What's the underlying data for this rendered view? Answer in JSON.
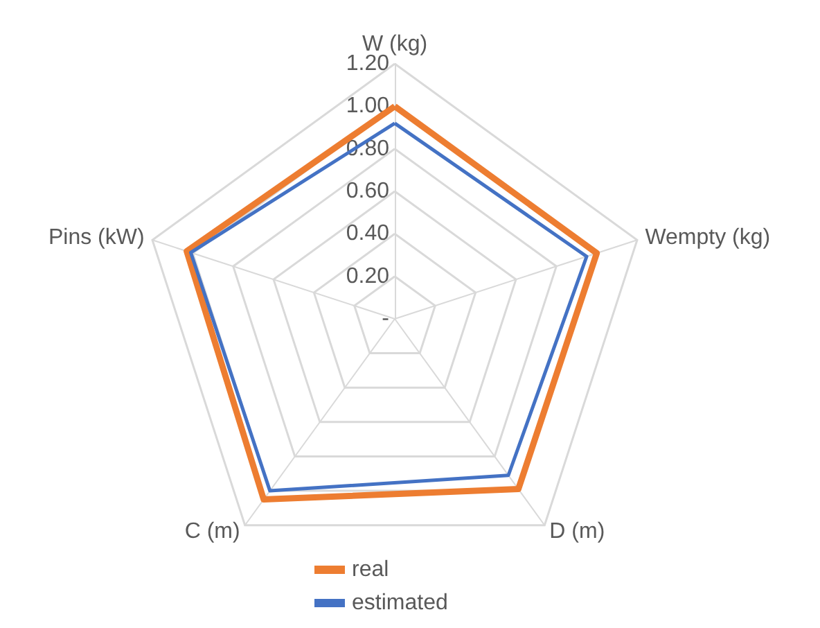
{
  "chart_data": {
    "type": "radar",
    "categories": [
      "W (kg)",
      "Wempty (kg)",
      "D (m)",
      "C (m)",
      "Pins (kW)"
    ],
    "ylim": [
      0,
      1.2
    ],
    "yticks": [
      {
        "value": 0,
        "label": "-"
      },
      {
        "value": 0.2,
        "label": "0.20"
      },
      {
        "value": 0.4,
        "label": "0.40"
      },
      {
        "value": 0.6,
        "label": "0.60"
      },
      {
        "value": 0.8,
        "label": "0.80"
      },
      {
        "value": 1.0,
        "label": "1.00"
      },
      {
        "value": 1.2,
        "label": "1.20"
      }
    ],
    "series": [
      {
        "name": "real",
        "color": "#ed7d31",
        "values": [
          1.0,
          1.0,
          0.99,
          1.05,
          1.03
        ]
      },
      {
        "name": "estimated",
        "color": "#4472c4",
        "values": [
          0.92,
          0.95,
          0.91,
          1.0,
          1.01
        ]
      }
    ],
    "legend": "bottom",
    "grid": true,
    "marker": "none"
  }
}
